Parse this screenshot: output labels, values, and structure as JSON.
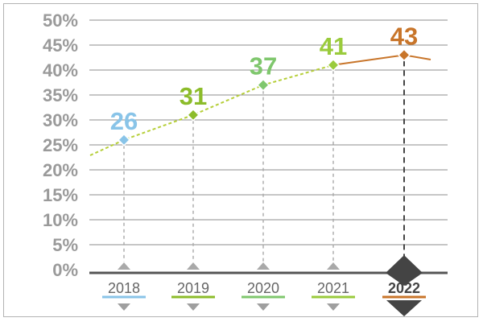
{
  "chart_data": {
    "type": "line",
    "title": "",
    "xlabel": "",
    "ylabel": "",
    "categories": [
      "2018",
      "2019",
      "2020",
      "2021",
      "2022"
    ],
    "values": [
      26,
      31,
      37,
      41,
      43
    ],
    "data_labels": [
      "26",
      "31",
      "37",
      "41",
      "43"
    ],
    "y_ticks": [
      "0%",
      "5%",
      "10%",
      "15%",
      "20%",
      "25%",
      "30%",
      "35%",
      "40%",
      "45%",
      "50%"
    ],
    "ylim": [
      0,
      50
    ],
    "grid": true,
    "highlight_category": "2022",
    "colors": {
      "2018": "#89c4e8",
      "2019": "#8cbc2a",
      "2020": "#7fc76d",
      "2021": "#9acb3c",
      "2022": "#c8752a",
      "trend_line": "#b6cf3a",
      "tick_text": "#9a9a9a",
      "axis": "#555555",
      "grid": "#8e8e8e",
      "guide": "#a8a8a8",
      "highlight_guide": "#444444"
    }
  }
}
